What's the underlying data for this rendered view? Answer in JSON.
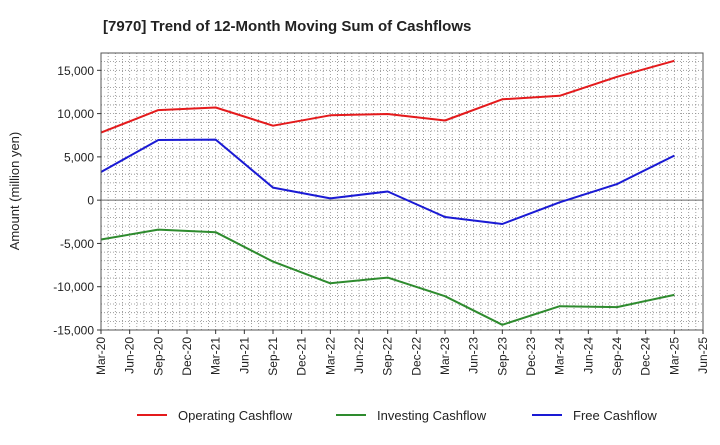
{
  "chart_data": {
    "type": "line",
    "title": "[7970]  Trend of 12-Month Moving Sum of Cashflows",
    "ylabel": "Amount (million yen)",
    "xlabel": "",
    "x_ticks": [
      "Mar-20",
      "Jun-20",
      "Sep-20",
      "Dec-20",
      "Mar-21",
      "Jun-21",
      "Sep-21",
      "Dec-21",
      "Mar-22",
      "Jun-22",
      "Sep-22",
      "Dec-22",
      "Mar-23",
      "Jun-23",
      "Sep-23",
      "Dec-23",
      "Mar-24",
      "Jun-24",
      "Sep-24",
      "Dec-24",
      "Mar-25",
      "Jun-25"
    ],
    "y_ticks": [
      15000,
      10000,
      5000,
      0,
      -5000,
      -10000,
      -15000
    ],
    "y_tick_labels": [
      "15,000",
      "10,000",
      "5,000",
      "0",
      "-5,000",
      "-10,000",
      "-15,000"
    ],
    "ylim": [
      -15000,
      17000
    ],
    "grid": true,
    "legend_position": "bottom",
    "series": [
      {
        "name": "Operating Cashflow",
        "color": "#e41a1c",
        "x": [
          "Mar-20",
          "Sep-20",
          "Mar-21",
          "Sep-21",
          "Mar-22",
          "Sep-22",
          "Mar-23",
          "Sep-23",
          "Mar-24",
          "Sep-24",
          "Mar-25"
        ],
        "values": [
          7800,
          10400,
          10700,
          8600,
          9800,
          9950,
          9200,
          11650,
          12050,
          14250,
          16100
        ]
      },
      {
        "name": "Investing Cashflow",
        "color": "#2e8b2e",
        "x": [
          "Mar-20",
          "Sep-20",
          "Mar-21",
          "Sep-21",
          "Mar-22",
          "Sep-22",
          "Mar-23",
          "Sep-23",
          "Mar-24",
          "Sep-24",
          "Mar-25"
        ],
        "values": [
          -4550,
          -3400,
          -3700,
          -7100,
          -9600,
          -8950,
          -11100,
          -14400,
          -12250,
          -12350,
          -10950
        ]
      },
      {
        "name": "Free Cashflow",
        "color": "#1a1ad4",
        "x": [
          "Mar-20",
          "Sep-20",
          "Mar-21",
          "Sep-21",
          "Mar-22",
          "Sep-22",
          "Mar-23",
          "Sep-23",
          "Mar-24",
          "Sep-24",
          "Mar-25"
        ],
        "values": [
          3250,
          6950,
          7000,
          1450,
          200,
          1000,
          -1950,
          -2750,
          -250,
          1850,
          5150
        ]
      }
    ]
  }
}
